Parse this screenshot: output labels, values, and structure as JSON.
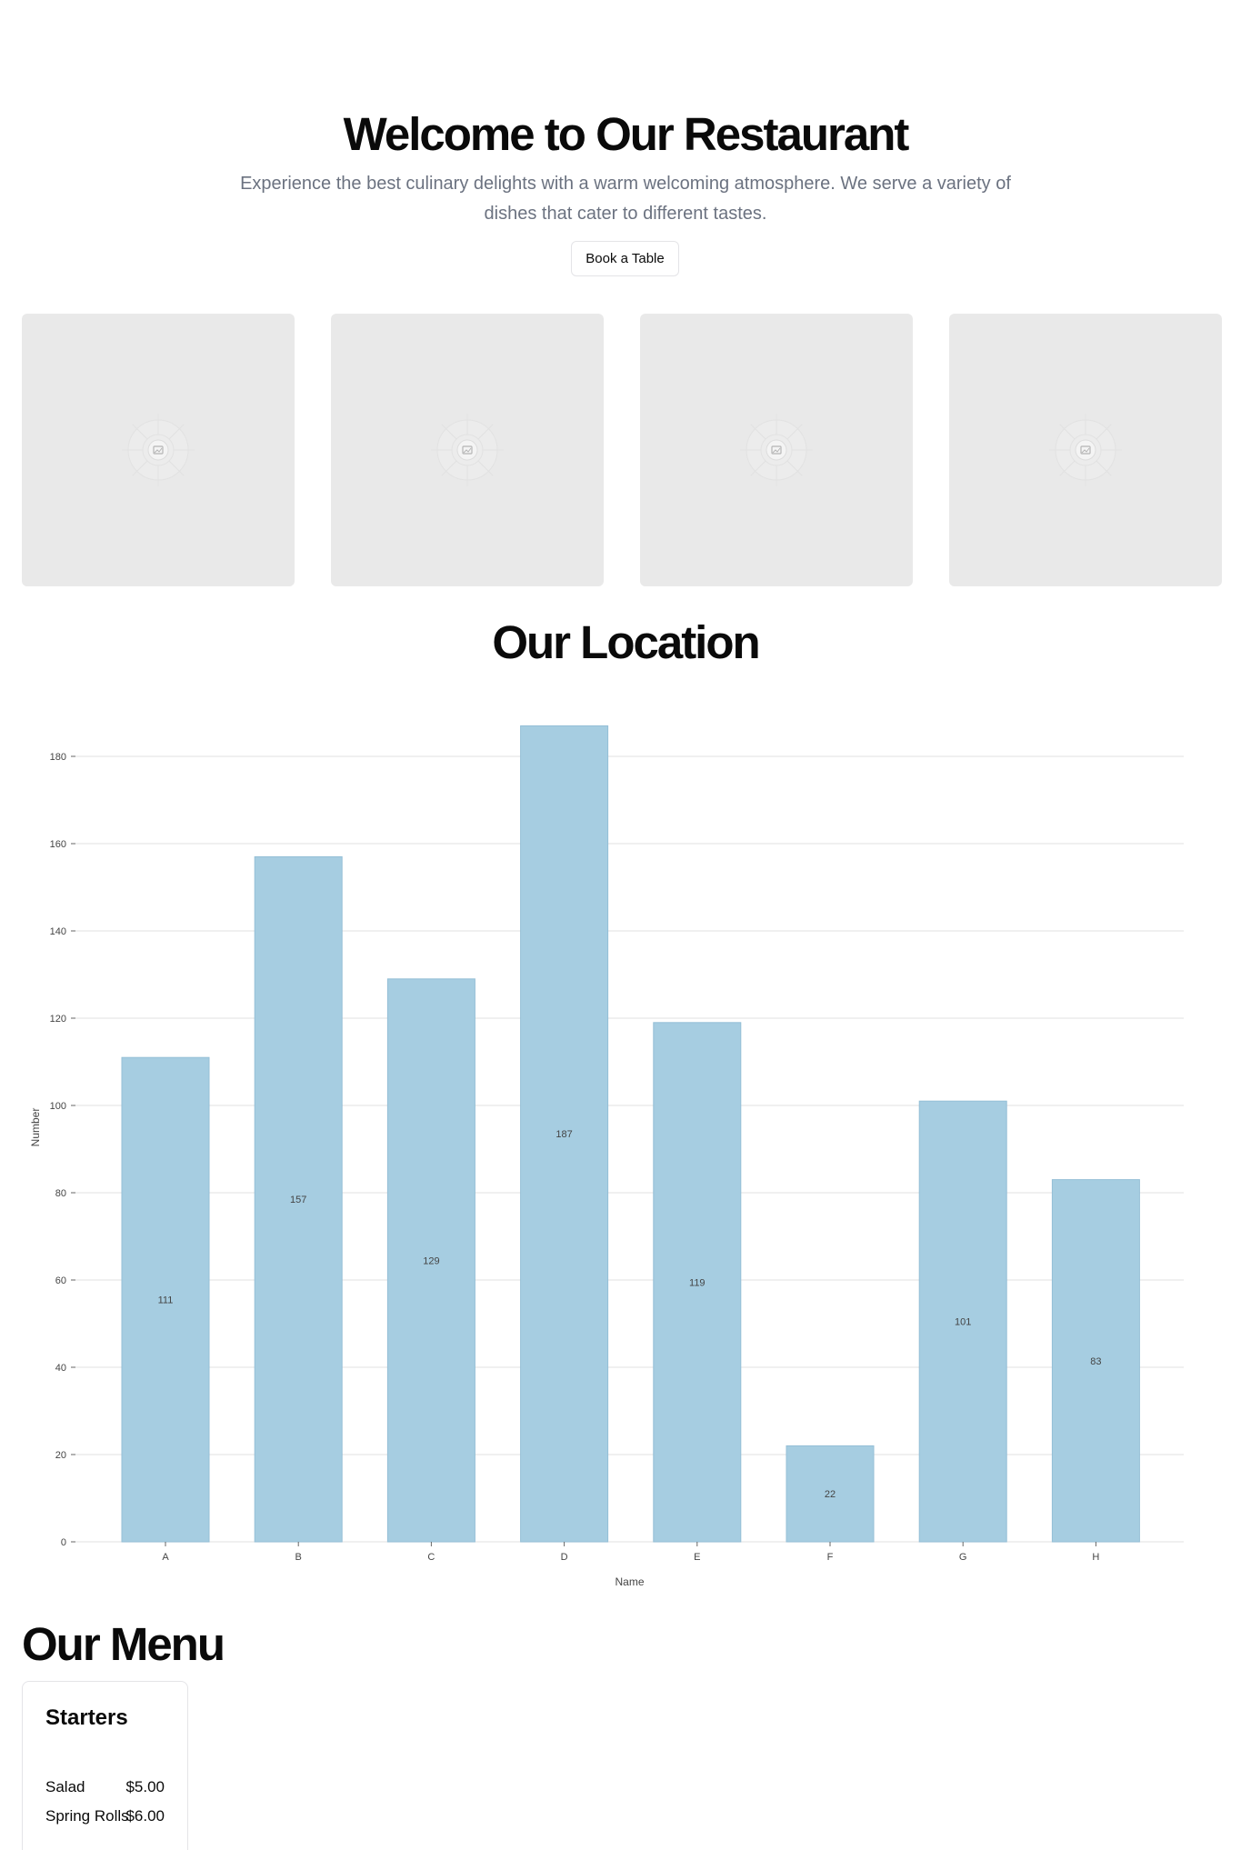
{
  "hero": {
    "title": "Welcome to Our Restaurant",
    "subtitle": "Experience the best culinary delights with a warm welcoming atmosphere. We serve a variety of dishes that cater to different tastes.",
    "cta_label": "Book a Table"
  },
  "gallery": {
    "placeholder_icon": "image-placeholder-icon",
    "count": 4
  },
  "location": {
    "title": "Our Location"
  },
  "chart_data": {
    "type": "bar",
    "categories": [
      "A",
      "B",
      "C",
      "D",
      "E",
      "F",
      "G",
      "H"
    ],
    "values": [
      111,
      157,
      129,
      187,
      119,
      22,
      101,
      83
    ],
    "title": "",
    "xlabel": "Name",
    "ylabel": "Number",
    "ylim": [
      0,
      190
    ],
    "yticks": [
      0,
      20,
      40,
      60,
      80,
      100,
      120,
      140,
      160,
      180
    ],
    "data_labels": true,
    "grid": true,
    "legend": "none",
    "bar_color": "#a6cde1",
    "bar_edge_color": "#95bfd6"
  },
  "menu": {
    "title": "Our Menu",
    "sections": [
      {
        "name": "Starters",
        "items": [
          {
            "name": "Salad",
            "price": "$5.00"
          },
          {
            "name": "Spring Rolls",
            "price": "$6.00"
          }
        ]
      }
    ]
  }
}
